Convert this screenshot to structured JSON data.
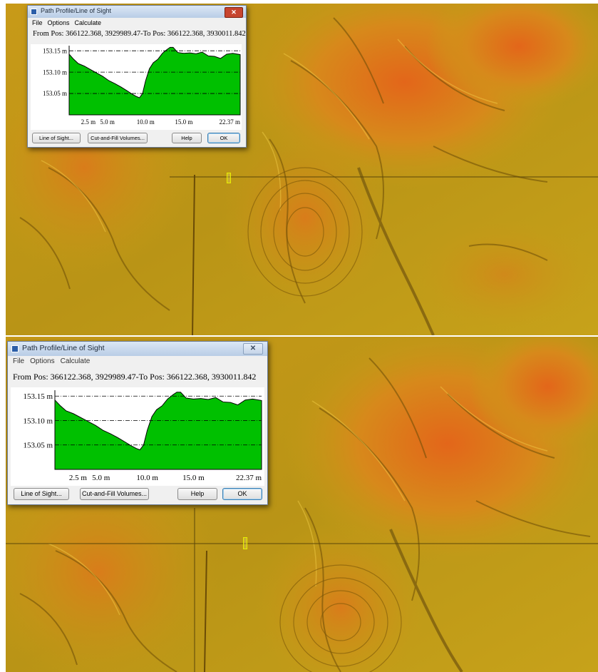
{
  "dialog": {
    "title": "Path Profile/Line of Sight",
    "close_glyph": "✕",
    "menu": [
      "File",
      "Options",
      "Calculate"
    ],
    "position_text": "From Pos: 366122.368, 3929989.47-To Pos: 366122.368, 3930011.842",
    "buttons": {
      "line_of_sight": "Line of Sight...",
      "cut_fill": "Cut-and-Fill Volumes...",
      "help": "Help",
      "ok": "OK"
    }
  },
  "chart_data": {
    "type": "area",
    "title": "",
    "xlabel": "",
    "ylabel": "",
    "x_ticks": [
      2.5,
      5.0,
      10.0,
      15.0,
      22.37
    ],
    "x_tick_labels": [
      "2.5 m",
      "5.0 m",
      "10.0 m",
      "15.0 m",
      "22.37 m"
    ],
    "y_ticks": [
      153.05,
      153.1,
      153.15
    ],
    "y_tick_labels": [
      "153.05 m",
      "153.10 m",
      "153.15 m"
    ],
    "xlim": [
      0,
      22.37
    ],
    "ylim": [
      153.0,
      153.162
    ],
    "fill_color": "#00c000",
    "series": [
      {
        "x": [
          0.0,
          0.6,
          1.2,
          2.0,
          2.8,
          3.6,
          4.4,
          5.2,
          6.0,
          6.8,
          7.6,
          8.2,
          8.8,
          9.2,
          9.6,
          10.0,
          10.5,
          11.0,
          11.6,
          12.2,
          12.8,
          13.2,
          13.6,
          14.2,
          15.0,
          15.8,
          16.6,
          17.4,
          18.2,
          19.0,
          19.8,
          20.6,
          21.4,
          22.37
        ],
        "y": [
          153.142,
          153.13,
          153.12,
          153.114,
          153.106,
          153.098,
          153.09,
          153.08,
          153.073,
          153.065,
          153.056,
          153.049,
          153.043,
          153.04,
          153.05,
          153.08,
          153.108,
          153.122,
          153.13,
          153.144,
          153.153,
          153.158,
          153.158,
          153.146,
          153.144,
          153.145,
          153.143,
          153.147,
          153.138,
          153.137,
          153.132,
          153.142,
          153.144,
          153.141
        ]
      }
    ]
  },
  "map": {
    "base_color": "#c79d17",
    "hill_color": "#e0751c",
    "shadow_color": "#6b4c06"
  }
}
